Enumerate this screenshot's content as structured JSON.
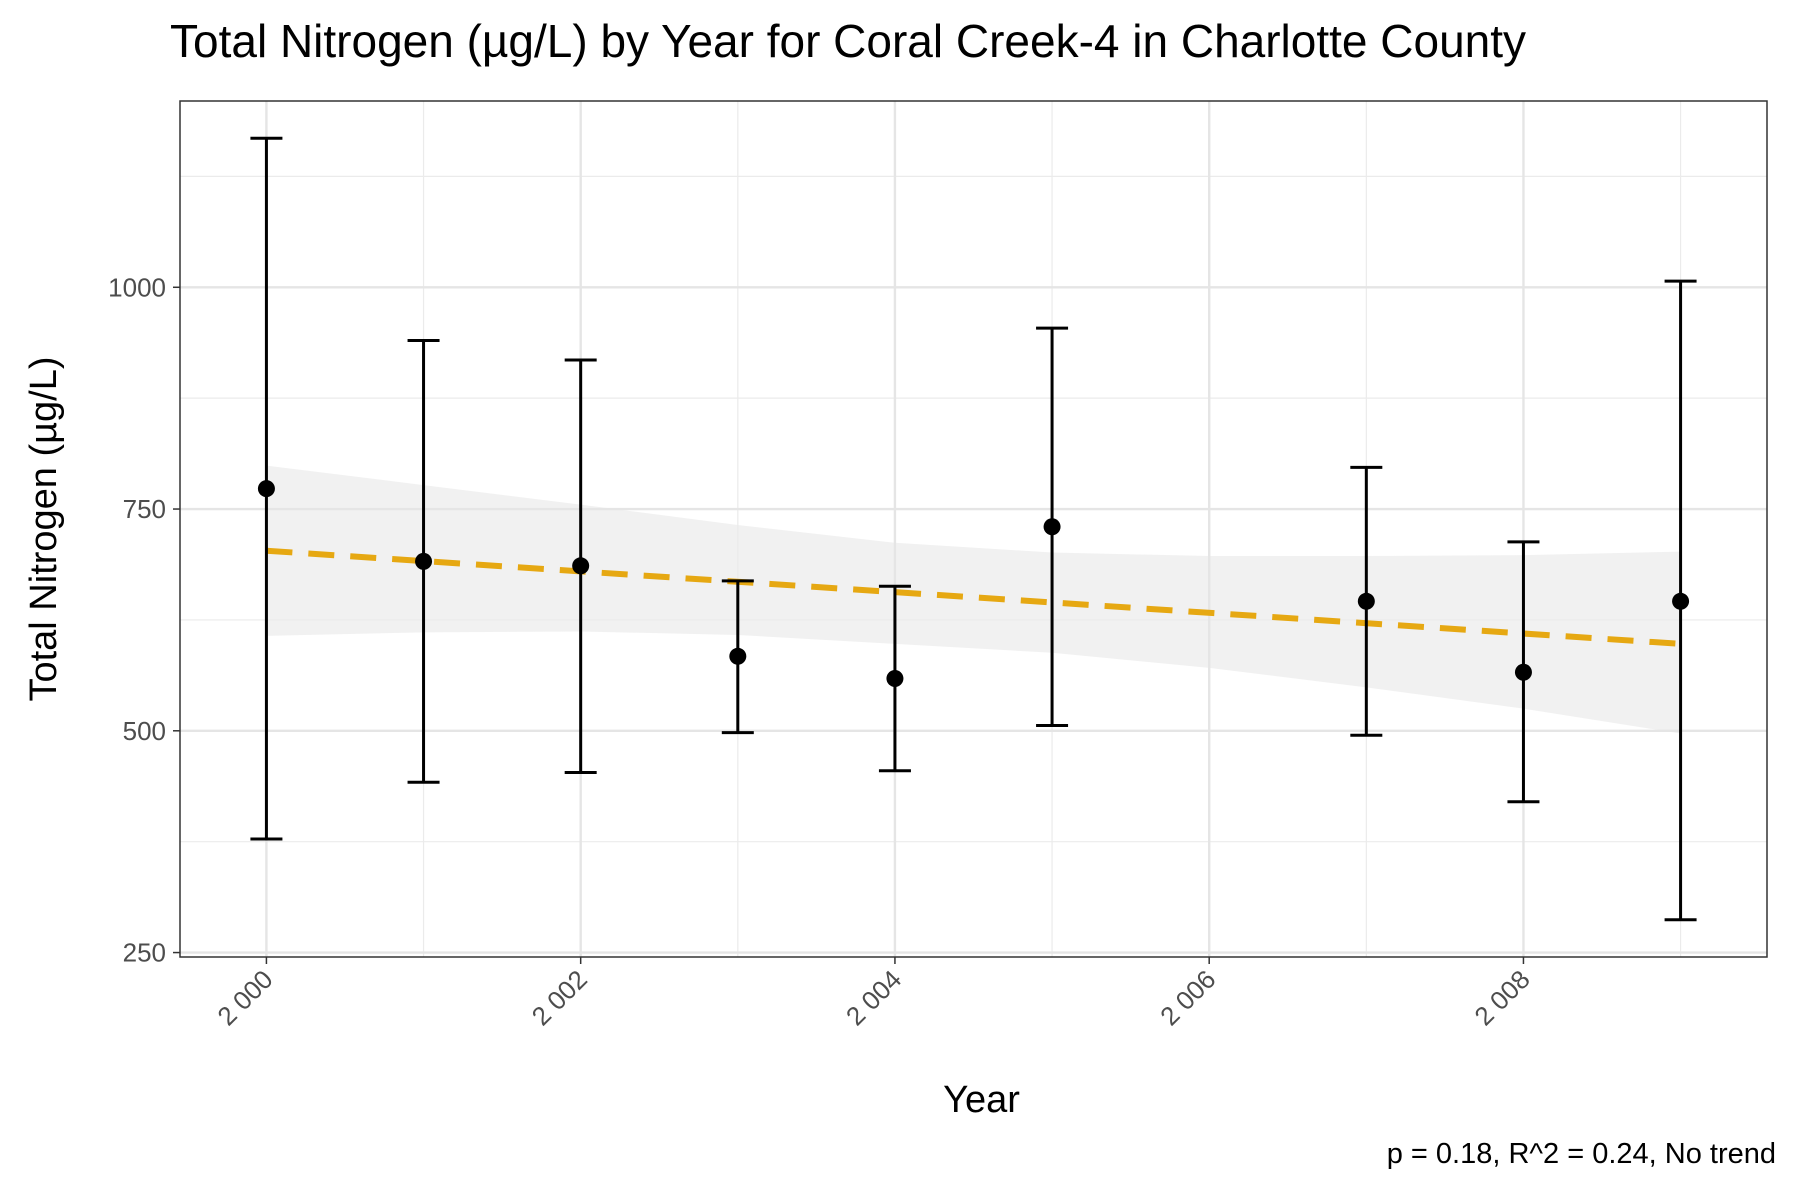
{
  "chart_data": {
    "type": "scatter",
    "title": "Total Nitrogen (µg/L) by Year for Coral Creek-4 in Charlotte County",
    "xlabel": "Year",
    "ylabel": "Total Nitrogen (µg/L)",
    "caption": "p = 0.18, R^2 = 0.24, No trend",
    "xlim": [
      1999.45,
      2009.55
    ],
    "ylim": [
      245,
      1210
    ],
    "x_ticks": [
      2000,
      2002,
      2004,
      2006,
      2008
    ],
    "x_tick_labels": [
      "2 000",
      "2 002",
      "2 004",
      "2 006",
      "2 008"
    ],
    "y_ticks": [
      250,
      500,
      750,
      1000
    ],
    "y_tick_labels": [
      "250",
      "500",
      "750",
      "1000"
    ],
    "grid": true,
    "series": [
      {
        "type": "points_with_errorbars",
        "x": [
          2000,
          2001,
          2002,
          2003,
          2004,
          2005,
          2007,
          2008,
          2009
        ],
        "y": [
          773,
          691,
          686,
          584,
          559,
          730,
          646,
          566,
          646
        ],
        "ymin": [
          378,
          442,
          453,
          498,
          455,
          506,
          495,
          420,
          287
        ],
        "ymax": [
          1168,
          940,
          918,
          669,
          663,
          954,
          797,
          713,
          1007
        ]
      },
      {
        "type": "trend_line",
        "style": "dashed",
        "color": "#E6A812",
        "x": [
          2000,
          2009
        ],
        "y": [
          703,
          598
        ]
      },
      {
        "type": "confidence_band",
        "color": "#EEEEEE",
        "x": [
          2000,
          2001,
          2002,
          2003,
          2004,
          2005,
          2006,
          2007,
          2008,
          2009
        ],
        "upper": [
          799,
          777,
          755,
          732,
          712,
          701,
          697,
          697,
          698,
          702
        ],
        "lower": [
          607,
          611,
          612,
          608,
          598,
          588,
          571,
          549,
          525,
          497
        ]
      }
    ]
  }
}
